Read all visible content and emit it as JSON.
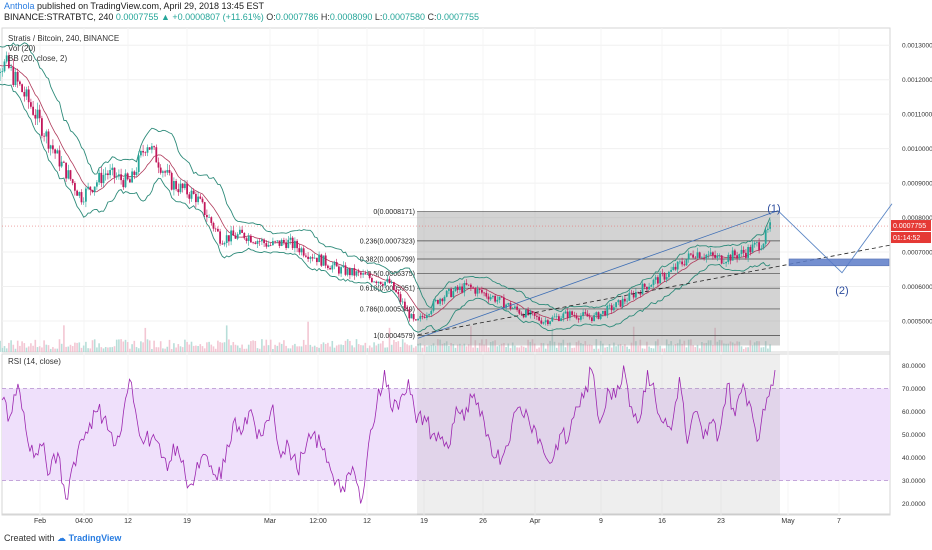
{
  "header": {
    "author": "Anthola",
    "published": "published on TradingView.com, April 29, 2018 13:45 EST",
    "symbol_line": "BINANCE:STRATBTC, 240",
    "last": "0.0007755",
    "change": "▲ +0.0000807 (+11.61%)",
    "open_label": "O:",
    "open": "0.0007786",
    "high_label": "H:",
    "high": "0.0008090",
    "low_label": "L:",
    "low": "0.0007580",
    "close_label": "C:",
    "close": "0.0007755"
  },
  "legend": {
    "title": "Stratis / Bitcoin, 240, BINANCE",
    "vol": "Vol (20)",
    "bb": "BB (20, close, 2)",
    "rsi": "RSI (14, close)"
  },
  "price_badge": "0.0007755",
  "time_badge": "01:14:52",
  "wave_labels": [
    "(1)",
    "(2)"
  ],
  "footer": {
    "created": "Created with",
    "brand": "TradingView"
  },
  "colors": {
    "bull": "#26a69a",
    "bear": "#c2185b",
    "bb": "#2e8b7a",
    "rsi": "#9c27b0",
    "rsi_band": "#efe0fb",
    "fib_box": "#aaaaaa",
    "target_box": "#5c7cc8"
  },
  "chart_data": [
    {
      "type": "candlestick",
      "title": "Stratis / Bitcoin, 240, BINANCE",
      "ylim": [
        0.00041,
        0.00135
      ],
      "y_ticks": [
        "0.0013000",
        "0.0012000",
        "0.0011000",
        "0.0010000",
        "0.0009000",
        "0.0008000",
        "0.0007000",
        "0.0006000",
        "0.0005000"
      ],
      "x_ticks": [
        "Feb",
        "04:00",
        "12",
        "19",
        "Mar",
        "12:00",
        "12",
        "19",
        "26",
        "Apr",
        "9",
        "16",
        "23",
        "May",
        "7"
      ],
      "close_path": [
        [
          "Jan 25",
          0.00126
        ],
        [
          "Jan 28",
          0.00124
        ],
        [
          "Jan 31",
          0.00112
        ],
        [
          "Feb 3",
          0.00098
        ],
        [
          "Feb 6",
          0.00086
        ],
        [
          "Feb 9",
          0.00093
        ],
        [
          "Feb 12",
          0.0009
        ],
        [
          "Feb 14",
          0.00102
        ],
        [
          "Feb 17",
          0.0009
        ],
        [
          "Feb 20",
          0.00086
        ],
        [
          "Feb 23",
          0.00074
        ],
        [
          "Feb 26",
          0.00075
        ],
        [
          "Mar 1",
          0.00072
        ],
        [
          "Mar 3",
          0.00073
        ],
        [
          "Mar 6",
          0.00069
        ],
        [
          "Mar 9",
          0.00065
        ],
        [
          "Mar 12",
          0.00063
        ],
        [
          "Mar 15",
          0.00061
        ],
        [
          "Mar 18",
          0.00049
        ],
        [
          "Mar 21",
          0.00057
        ],
        [
          "Mar 24",
          0.0006
        ],
        [
          "Mar 27",
          0.00057
        ],
        [
          "Mar 30",
          0.00053
        ],
        [
          "Apr 2",
          0.0005
        ],
        [
          "Apr 5",
          0.00052
        ],
        [
          "Apr 8",
          0.00051
        ],
        [
          "Apr 11",
          0.00055
        ],
        [
          "Apr 14",
          0.0006
        ],
        [
          "Apr 17",
          0.00064
        ],
        [
          "Apr 20",
          0.0007
        ],
        [
          "Apr 23",
          0.00068
        ],
        [
          "Apr 26",
          0.0007
        ],
        [
          "Apr 28",
          0.00073
        ],
        [
          "Apr 29",
          0.0007755
        ]
      ],
      "fibonacci": [
        {
          "label": "0(0.0008171)",
          "level": 0.0008171
        },
        {
          "label": "0.236(0.0007323)",
          "level": 0.0007323
        },
        {
          "label": "0.382(0.0006799)",
          "level": 0.0006799
        },
        {
          "label": "0.5(0.0006375)",
          "level": 0.0006375
        },
        {
          "label": "0.618(0.0005951)",
          "level": 0.0005951
        },
        {
          "label": "0.786(0.0005349)",
          "level": 0.0005349
        },
        {
          "label": "1(0.0004579)",
          "level": 0.0004579
        }
      ]
    },
    {
      "type": "line",
      "title": "RSI (14, close)",
      "ylim": [
        15,
        85
      ],
      "y_ticks": [
        "80.0000",
        "70.0000",
        "60.0000",
        "50.0000",
        "40.0000",
        "30.0000",
        "20.0000"
      ],
      "band": [
        30,
        70
      ],
      "values": [
        65,
        58,
        72,
        52,
        40,
        45,
        33,
        42,
        22,
        38,
        48,
        55,
        60,
        58,
        45,
        52,
        74,
        55,
        48,
        50,
        40,
        38,
        45,
        32,
        28,
        40,
        36,
        30,
        38,
        55,
        50,
        60,
        48,
        55,
        63,
        40,
        45,
        35,
        42,
        50,
        45,
        38,
        30,
        25,
        36,
        20,
        46,
        62,
        78,
        60,
        66,
        74,
        55,
        58,
        50,
        48,
        44,
        62,
        56,
        66,
        58,
        50,
        40,
        42,
        55,
        62,
        58,
        52,
        42,
        38,
        50,
        47,
        62,
        66,
        78,
        55,
        70,
        66,
        80,
        62,
        56,
        78,
        65,
        55,
        52,
        75,
        46,
        60,
        48,
        55,
        50,
        72,
        58,
        72,
        62,
        48,
        66,
        78
      ]
    }
  ]
}
